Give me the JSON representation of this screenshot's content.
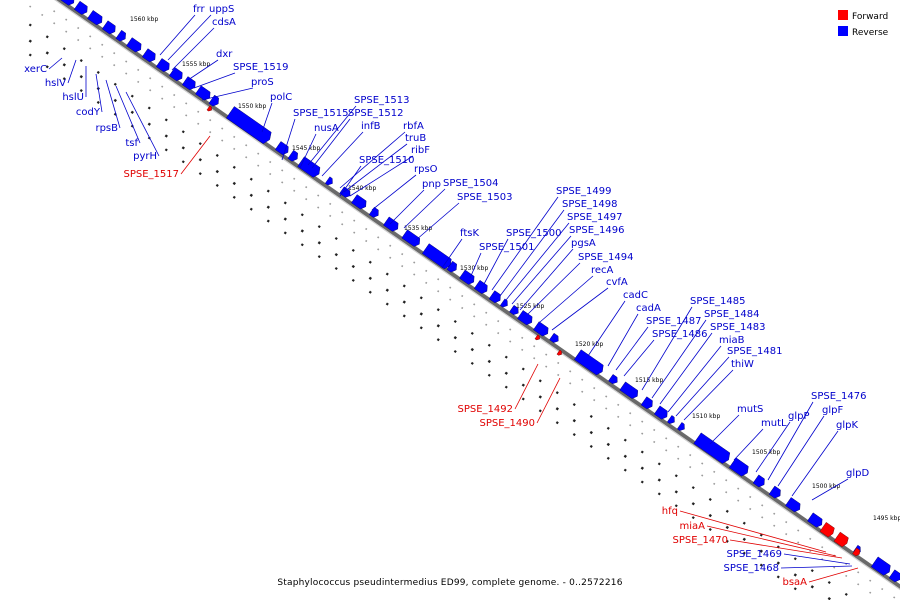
{
  "legend": {
    "forward_label": "Forward",
    "reverse_label": "Reverse",
    "forward_color": "#ff0000",
    "reverse_color": "#0000ff"
  },
  "caption": "Staphylococcus pseudintermedius ED99, complete genome. - 0..2572216",
  "ticks": [
    "1560 kbp",
    "1555 kbp",
    "1550 kbp",
    "1545 kbp",
    "1540 kbp",
    "1535 kbp",
    "1530 kbp",
    "1525 kbp",
    "1520 kbp",
    "1515 kbp",
    "1510 kbp",
    "1505 kbp",
    "1500 kbp",
    "1495 kbp"
  ],
  "genes": [
    {
      "name": "frr",
      "strand": "reverse"
    },
    {
      "name": "uppS",
      "strand": "reverse"
    },
    {
      "name": "cdsA",
      "strand": "reverse"
    },
    {
      "name": "dxr",
      "strand": "reverse"
    },
    {
      "name": "SPSE_1519",
      "strand": "reverse"
    },
    {
      "name": "proS",
      "strand": "reverse"
    },
    {
      "name": "polC",
      "strand": "reverse"
    },
    {
      "name": "SPSE_1513",
      "strand": "reverse"
    },
    {
      "name": "SPSE_1515",
      "strand": "reverse"
    },
    {
      "name": "SPSE_1512",
      "strand": "reverse"
    },
    {
      "name": "nusA",
      "strand": "reverse"
    },
    {
      "name": "infB",
      "strand": "reverse"
    },
    {
      "name": "rbfA",
      "strand": "reverse"
    },
    {
      "name": "truB",
      "strand": "reverse"
    },
    {
      "name": "ribF",
      "strand": "reverse"
    },
    {
      "name": "SPSE_1510",
      "strand": "reverse"
    },
    {
      "name": "rpsO",
      "strand": "reverse"
    },
    {
      "name": "pnp",
      "strand": "reverse"
    },
    {
      "name": "SPSE_1504",
      "strand": "reverse"
    },
    {
      "name": "SPSE_1503",
      "strand": "reverse"
    },
    {
      "name": "SPSE_1499",
      "strand": "reverse"
    },
    {
      "name": "SPSE_1498",
      "strand": "reverse"
    },
    {
      "name": "SPSE_1497",
      "strand": "reverse"
    },
    {
      "name": "SPSE_1496",
      "strand": "reverse"
    },
    {
      "name": "SPSE_1500",
      "strand": "reverse"
    },
    {
      "name": "ftsK",
      "strand": "reverse"
    },
    {
      "name": "SPSE_1501",
      "strand": "reverse"
    },
    {
      "name": "pgsA",
      "strand": "reverse"
    },
    {
      "name": "SPSE_1494",
      "strand": "reverse"
    },
    {
      "name": "recA",
      "strand": "reverse"
    },
    {
      "name": "cvfA",
      "strand": "reverse"
    },
    {
      "name": "cadC",
      "strand": "reverse"
    },
    {
      "name": "cadA",
      "strand": "reverse"
    },
    {
      "name": "SPSE_1487",
      "strand": "reverse"
    },
    {
      "name": "SPSE_1486",
      "strand": "reverse"
    },
    {
      "name": "SPSE_1485",
      "strand": "reverse"
    },
    {
      "name": "SPSE_1484",
      "strand": "reverse"
    },
    {
      "name": "SPSE_1483",
      "strand": "reverse"
    },
    {
      "name": "miaB",
      "strand": "reverse"
    },
    {
      "name": "SPSE_1481",
      "strand": "reverse"
    },
    {
      "name": "thiW",
      "strand": "reverse"
    },
    {
      "name": "mutS",
      "strand": "reverse"
    },
    {
      "name": "mutL",
      "strand": "reverse"
    },
    {
      "name": "glpP",
      "strand": "reverse"
    },
    {
      "name": "SPSE_1476",
      "strand": "reverse"
    },
    {
      "name": "glpF",
      "strand": "reverse"
    },
    {
      "name": "glpK",
      "strand": "reverse"
    },
    {
      "name": "glpD",
      "strand": "reverse"
    },
    {
      "name": "SPSE_1469",
      "strand": "reverse"
    },
    {
      "name": "SPSE_1468",
      "strand": "reverse"
    },
    {
      "name": "xerC",
      "strand": "reverse"
    },
    {
      "name": "hslV",
      "strand": "reverse"
    },
    {
      "name": "hslU",
      "strand": "reverse"
    },
    {
      "name": "codY",
      "strand": "reverse"
    },
    {
      "name": "rpsB",
      "strand": "reverse"
    },
    {
      "name": "tsf",
      "strand": "reverse"
    },
    {
      "name": "pyrH",
      "strand": "reverse"
    },
    {
      "name": "SPSE_1517",
      "strand": "forward"
    },
    {
      "name": "SPSE_1492",
      "strand": "forward"
    },
    {
      "name": "SPSE_1490",
      "strand": "forward"
    },
    {
      "name": "hfq",
      "strand": "forward"
    },
    {
      "name": "miaA",
      "strand": "forward"
    },
    {
      "name": "SPSE_1470",
      "strand": "forward"
    },
    {
      "name": "bsaA",
      "strand": "forward"
    }
  ]
}
